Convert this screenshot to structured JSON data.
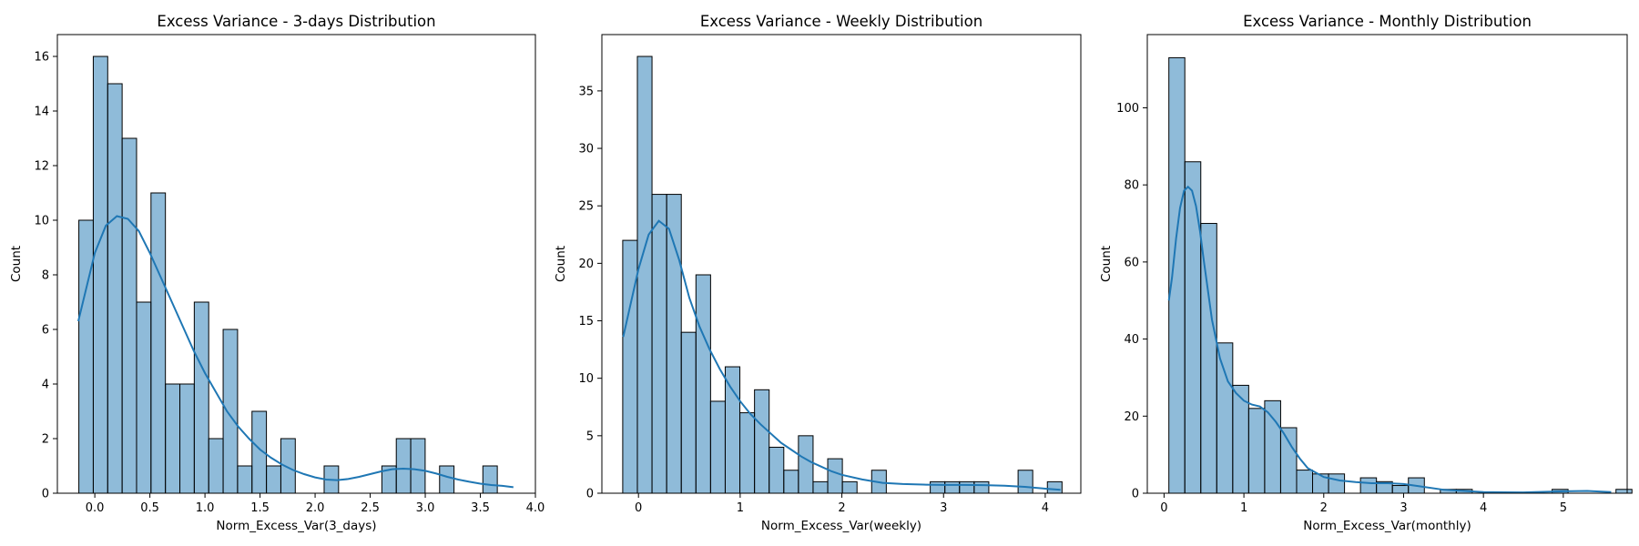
{
  "chart_data": [
    {
      "type": "bar",
      "subtype": "histogram",
      "title": "Excess Variance - 3-days Distribution",
      "xlabel": "Norm_Excess_Var(3_days)",
      "ylabel": "Count",
      "xlim": [
        -0.34,
        4.0
      ],
      "ylim": [
        0,
        16.8
      ],
      "xticks": [
        0.0,
        0.5,
        1.0,
        1.5,
        2.0,
        2.5,
        3.0,
        3.5,
        4.0
      ],
      "xtick_labels": [
        "0.0",
        "0.5",
        "1.0",
        "1.5",
        "2.0",
        "2.5",
        "3.0",
        "3.5",
        "4.0"
      ],
      "yticks": [
        0,
        2,
        4,
        6,
        8,
        10,
        12,
        14,
        16
      ],
      "ytick_labels": [
        "0",
        "2",
        "4",
        "6",
        "8",
        "10",
        "12",
        "14",
        "16"
      ],
      "bin_start": -0.145,
      "bin_width": 0.131,
      "values": [
        10,
        16,
        15,
        13,
        7,
        11,
        4,
        4,
        7,
        2,
        6,
        1,
        3,
        1,
        2,
        0,
        0,
        1,
        0,
        0,
        0,
        1,
        2,
        2,
        0,
        1,
        0,
        0,
        1
      ],
      "kde": {
        "x": [
          -0.15,
          0.0,
          0.1,
          0.2,
          0.3,
          0.4,
          0.5,
          0.6,
          0.7,
          0.8,
          0.9,
          1.0,
          1.1,
          1.2,
          1.3,
          1.4,
          1.5,
          1.6,
          1.7,
          1.8,
          1.9,
          2.0,
          2.1,
          2.2,
          2.3,
          2.4,
          2.5,
          2.6,
          2.7,
          2.8,
          2.9,
          3.0,
          3.1,
          3.2,
          3.3,
          3.4,
          3.5,
          3.6,
          3.7,
          3.8
        ],
        "y": [
          6.3,
          8.8,
          9.8,
          10.15,
          10.05,
          9.6,
          8.8,
          7.9,
          7.0,
          6.1,
          5.2,
          4.4,
          3.7,
          3.0,
          2.45,
          2.0,
          1.6,
          1.3,
          1.05,
          0.85,
          0.7,
          0.58,
          0.5,
          0.48,
          0.52,
          0.6,
          0.7,
          0.8,
          0.88,
          0.9,
          0.88,
          0.82,
          0.72,
          0.6,
          0.5,
          0.42,
          0.35,
          0.3,
          0.27,
          0.22
        ]
      },
      "color": "#1f77b4"
    },
    {
      "type": "bar",
      "subtype": "histogram",
      "title": "Excess Variance - Weekly Distribution",
      "xlabel": "Norm_Excess_Var(weekly)",
      "ylabel": "Count",
      "xlim": [
        -0.36,
        4.35
      ],
      "ylim": [
        0,
        39.9
      ],
      "xticks": [
        0,
        1,
        2,
        3,
        4
      ],
      "xtick_labels": [
        "0",
        "1",
        "2",
        "3",
        "4"
      ],
      "yticks": [
        0,
        5,
        10,
        15,
        20,
        25,
        30,
        35
      ],
      "ytick_labels": [
        "0",
        "5",
        "10",
        "15",
        "20",
        "25",
        "30",
        "35"
      ],
      "bin_start": -0.155,
      "bin_width": 0.144,
      "values": [
        22,
        38,
        26,
        26,
        14,
        19,
        8,
        11,
        7,
        9,
        4,
        2,
        5,
        1,
        3,
        1,
        0,
        2,
        0,
        0,
        0,
        1,
        1,
        1,
        1,
        0,
        0,
        2,
        0,
        1
      ],
      "kde": {
        "x": [
          -0.15,
          0.0,
          0.1,
          0.2,
          0.3,
          0.4,
          0.5,
          0.6,
          0.7,
          0.8,
          0.9,
          1.0,
          1.1,
          1.2,
          1.3,
          1.4,
          1.5,
          1.6,
          1.7,
          1.8,
          1.9,
          2.0,
          2.2,
          2.4,
          2.6,
          2.8,
          3.0,
          3.2,
          3.4,
          3.6,
          3.8,
          4.0,
          4.15
        ],
        "y": [
          13.6,
          19.5,
          22.5,
          23.7,
          23.0,
          20.3,
          17.0,
          14.5,
          12.5,
          10.8,
          9.3,
          8.0,
          6.9,
          6.0,
          5.2,
          4.4,
          3.8,
          3.2,
          2.7,
          2.3,
          1.9,
          1.6,
          1.2,
          0.9,
          0.8,
          0.75,
          0.72,
          0.72,
          0.7,
          0.65,
          0.55,
          0.4,
          0.3
        ]
      },
      "color": "#1f77b4"
    },
    {
      "type": "bar",
      "subtype": "histogram",
      "title": "Excess Variance - Monthly Distribution",
      "xlabel": "Norm_Excess_Var(monthly)",
      "ylabel": "Count",
      "xlim": [
        -0.21,
        5.8
      ],
      "ylim": [
        0,
        119
      ],
      "xticks": [
        0,
        1,
        2,
        3,
        4,
        5
      ],
      "xtick_labels": [
        "0",
        "1",
        "2",
        "3",
        "4",
        "5"
      ],
      "yticks": [
        0,
        20,
        40,
        60,
        80,
        100
      ],
      "ytick_labels": [
        "0",
        "20",
        "40",
        "60",
        "80",
        "100"
      ],
      "bin_start": 0.06,
      "bin_width": 0.2,
      "values": [
        113,
        86,
        70,
        39,
        28,
        22,
        24,
        17,
        6,
        5,
        5,
        0,
        4,
        3,
        2,
        4,
        0,
        1,
        1,
        0,
        0,
        0,
        0,
        0,
        1,
        0,
        0,
        0,
        1
      ],
      "kde": {
        "x": [
          0.06,
          0.1,
          0.15,
          0.2,
          0.25,
          0.3,
          0.35,
          0.4,
          0.45,
          0.5,
          0.6,
          0.7,
          0.8,
          0.9,
          1.0,
          1.1,
          1.2,
          1.3,
          1.4,
          1.5,
          1.6,
          1.7,
          1.8,
          2.0,
          2.2,
          2.4,
          2.6,
          2.8,
          3.0,
          3.2,
          3.5,
          4.0,
          4.5,
          5.0,
          5.3,
          5.6
        ],
        "y": [
          50,
          56,
          66,
          74,
          78.5,
          79.5,
          78.5,
          74.5,
          68,
          60,
          45,
          35,
          29,
          26,
          24,
          23,
          22.5,
          21,
          18.5,
          15.5,
          12,
          9,
          6.5,
          4.2,
          3.3,
          2.9,
          2.6,
          2.6,
          2.4,
          1.8,
          0.9,
          0.3,
          0.2,
          0.5,
          0.6,
          0.3
        ]
      },
      "color": "#1f77b4"
    }
  ]
}
